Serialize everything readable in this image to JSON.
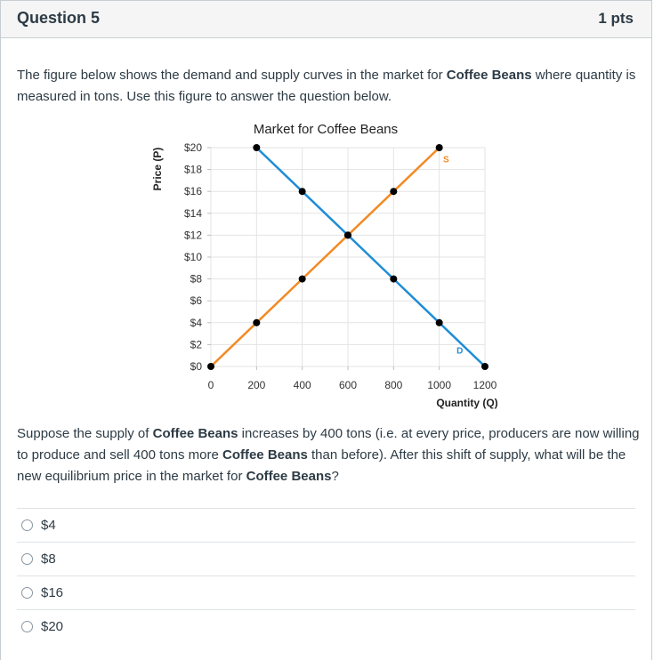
{
  "header": {
    "title": "Question 5",
    "points": "1 pts"
  },
  "intro": {
    "p1": "The figure below shows the demand and supply curves in the market for ",
    "b1": "Coffee Beans",
    "p2": " where quantity is measured in tons. Use this figure to answer the question below."
  },
  "question": {
    "p1": "Suppose the supply of ",
    "b1": "Coffee Beans",
    "p2": " increases by 400 tons (i.e. at every price, producers are now willing to produce and sell 400 tons more ",
    "b2": "Coffee Beans",
    "p3": " than before). After this shift of supply, what will be the new equilibrium price in the market for ",
    "b3": "Coffee Beans",
    "p4": "?"
  },
  "answers": [
    {
      "label": "$4"
    },
    {
      "label": "$8"
    },
    {
      "label": "$16"
    },
    {
      "label": "$20"
    }
  ],
  "chart_data": {
    "type": "line",
    "title": "Market for Coffee Beans",
    "xlabel": "Quantity (Q)",
    "ylabel": "Price (P)",
    "xlim": [
      0,
      1200
    ],
    "ylim": [
      0,
      20
    ],
    "x_ticks": [
      0,
      200,
      400,
      600,
      800,
      1000,
      1200
    ],
    "x_tick_labels": [
      "0",
      "200",
      "400",
      "600",
      "800",
      "1000",
      "1200"
    ],
    "y_ticks": [
      0,
      2,
      4,
      6,
      8,
      10,
      12,
      14,
      16,
      18,
      20
    ],
    "y_tick_labels": [
      "$0",
      "$2",
      "$4",
      "$6",
      "$8",
      "$10",
      "$12",
      "$14",
      "$16",
      "$18",
      "$20"
    ],
    "grid": true,
    "series": [
      {
        "name": "D",
        "color": "#1f8dd6",
        "x": [
          200,
          400,
          600,
          800,
          1000,
          1200
        ],
        "y": [
          20,
          16,
          12,
          8,
          4,
          0
        ]
      },
      {
        "name": "S",
        "color": "#f28a24",
        "x": [
          0,
          200,
          400,
          600,
          800,
          1000
        ],
        "y": [
          0,
          4,
          8,
          12,
          16,
          20
        ]
      }
    ],
    "annotations": [
      {
        "text": "S",
        "color": "#f28a24",
        "x": 1030,
        "y": 19
      },
      {
        "text": "D",
        "color": "#1f8dd6",
        "x": 1090,
        "y": 1.5
      }
    ]
  }
}
